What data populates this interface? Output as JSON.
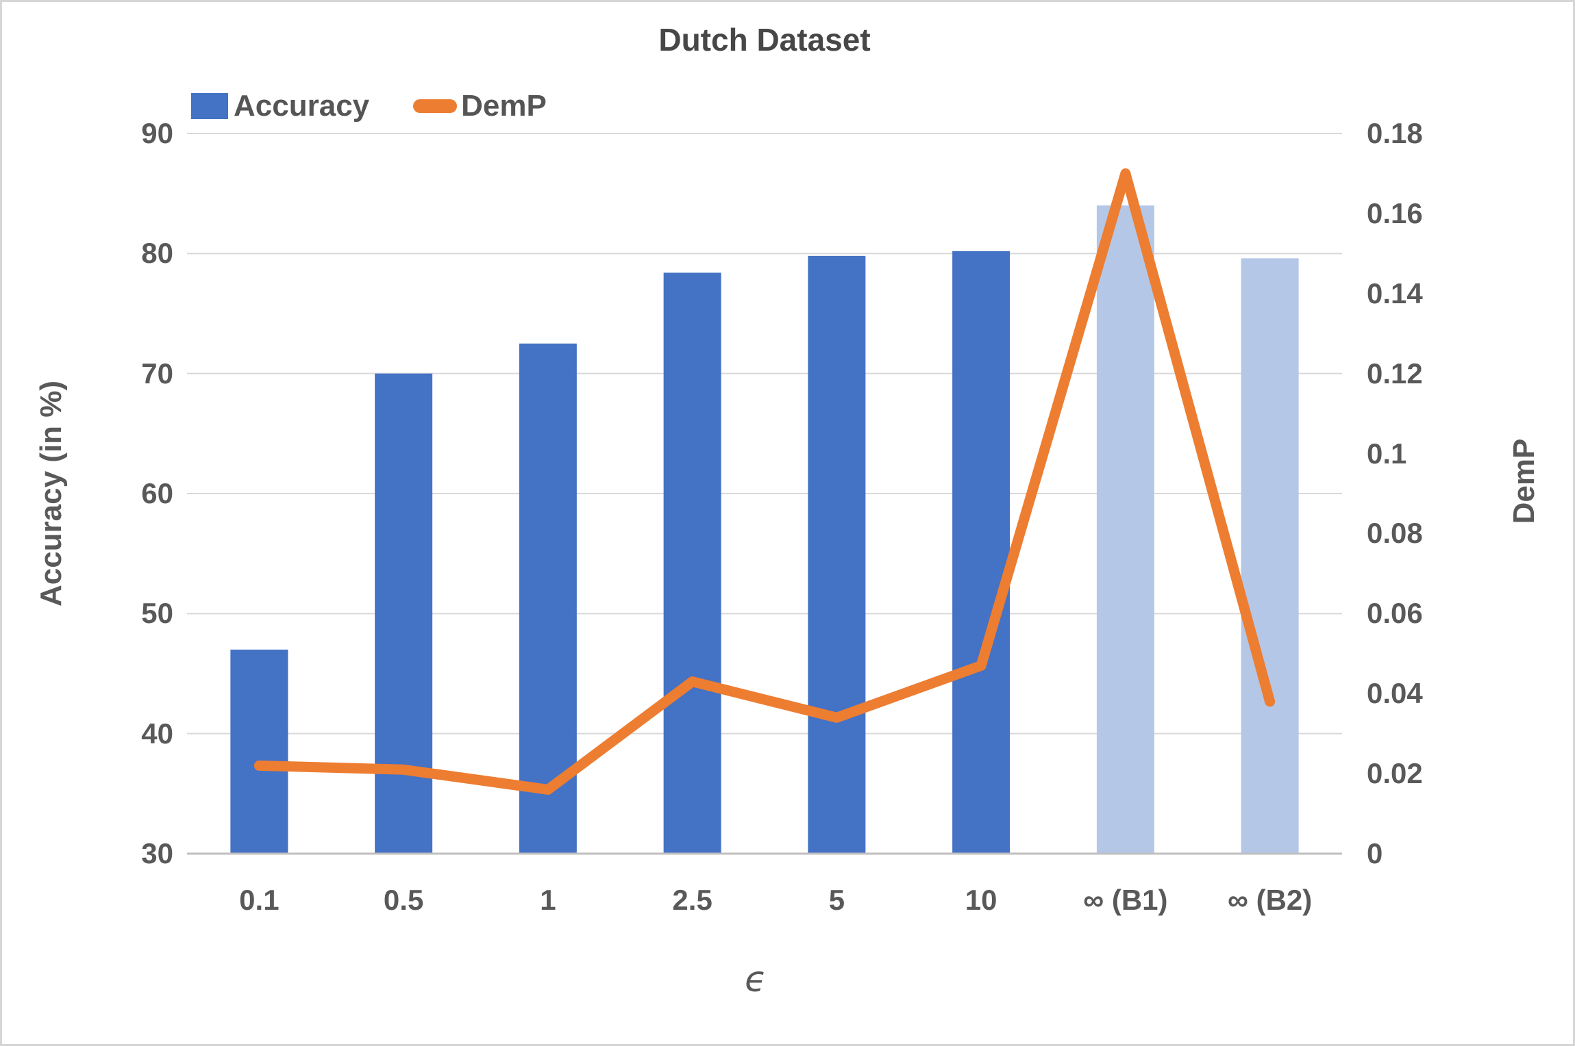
{
  "chart_data": {
    "type": "combo-bar-line",
    "title": "Dutch Dataset",
    "x_title": "ϵ",
    "categories": [
      "0.1",
      "0.5",
      "1",
      "2.5",
      "5",
      "10",
      "∞ (B1)",
      "∞ (B2)"
    ],
    "series": [
      {
        "name": "Accuracy",
        "type": "bar",
        "axis": "left",
        "values": [
          47,
          70,
          72.5,
          78.4,
          79.8,
          80.2,
          84,
          79.6
        ],
        "colors": [
          "#4472C4",
          "#4472C4",
          "#4472C4",
          "#4472C4",
          "#4472C4",
          "#4472C4",
          "#B4C7E7",
          "#B4C7E7"
        ]
      },
      {
        "name": "DemP",
        "type": "line",
        "axis": "right",
        "color": "#ED7D31",
        "values": [
          0.022,
          0.021,
          0.016,
          0.043,
          0.034,
          0.047,
          0.17,
          0.038
        ]
      }
    ],
    "left_axis": {
      "title": "Accuracy (in %)",
      "min": 30,
      "max": 90,
      "ticks": [
        "30",
        "40",
        "50",
        "60",
        "70",
        "80",
        "90"
      ]
    },
    "right_axis": {
      "title": "DemP",
      "min": 0,
      "max": 0.18,
      "ticks": [
        "0",
        "0.02",
        "0.04",
        "0.06",
        "0.08",
        "0.1",
        "0.12",
        "0.14",
        "0.16",
        "0.18"
      ]
    },
    "grid": "horizontal",
    "grid_color": "#D9D9D9",
    "axis_line_color": "#BFBFBF",
    "legend_position": "top-left"
  }
}
